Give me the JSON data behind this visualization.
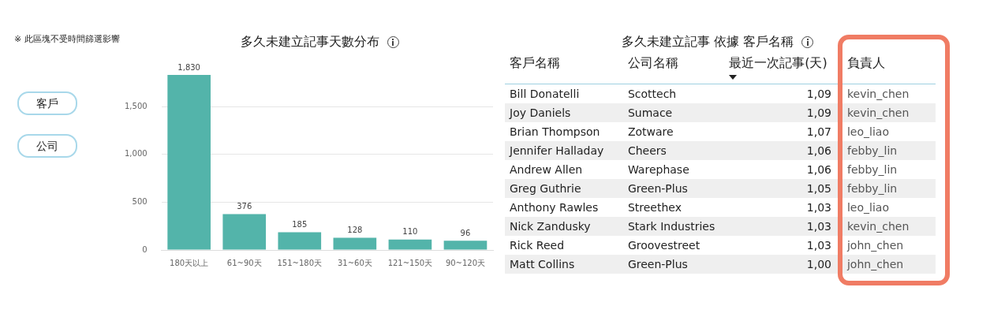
{
  "chart_data": [
    {
      "type": "bar",
      "title": "多久未建立記事天數分布",
      "categories": [
        "180天以上",
        "61~90天",
        "151~180天",
        "31~60天",
        "121~150天",
        "90~120天"
      ],
      "values": [
        1830,
        376,
        185,
        128,
        110,
        96
      ],
      "value_labels": [
        "1,830",
        "376",
        "185",
        "128",
        "110",
        "96"
      ],
      "color": "#53b4aa",
      "ylim": [
        0,
        1830
      ],
      "yticks": [
        0,
        500,
        {
          "value": 1000,
          "label": "1,000"
        },
        {
          "value": 1500,
          "label": "1,500"
        }
      ],
      "grid": "y",
      "legend": false,
      "annotations": [
        "※ 此區塊不受時間篩選影響",
        "客戶",
        "公司"
      ]
    },
    {
      "type": "other",
      "title": "多久未建立記事 依據 客戶名稱",
      "categories": [
        "客戶名稱",
        "公司名稱",
        "最近一次記事(天)",
        "負責人"
      ],
      "cell_labels": [
        [
          "Bill Donatelli",
          "Scottech",
          "1,09",
          "kevin_chen"
        ],
        [
          "Joy Daniels",
          "Sumace",
          "1,09",
          "kevin_chen"
        ],
        [
          "Brian Thompson",
          "Zotware",
          "1,07",
          "leo_liao"
        ],
        [
          "Jennifer Halladay",
          "Cheers",
          "1,06",
          "febby_lin"
        ],
        [
          "Andrew Allen",
          "Warephase",
          "1,06",
          "febby_lin"
        ],
        [
          "Greg Guthrie",
          "Green-Plus",
          "1,05",
          "febby_lin"
        ],
        [
          "Anthony Rawles",
          "Streethex",
          "1,03",
          "leo_liao"
        ],
        [
          "Nick Zandusky",
          "Stark Industries",
          "1,03",
          "kevin_chen"
        ],
        [
          "Rick Reed",
          "Groovestreet",
          "1,03",
          "john_chen"
        ],
        [
          "Matt Collins",
          "Green-Plus",
          "1,00",
          "john_chen"
        ]
      ]
    }
  ]
}
